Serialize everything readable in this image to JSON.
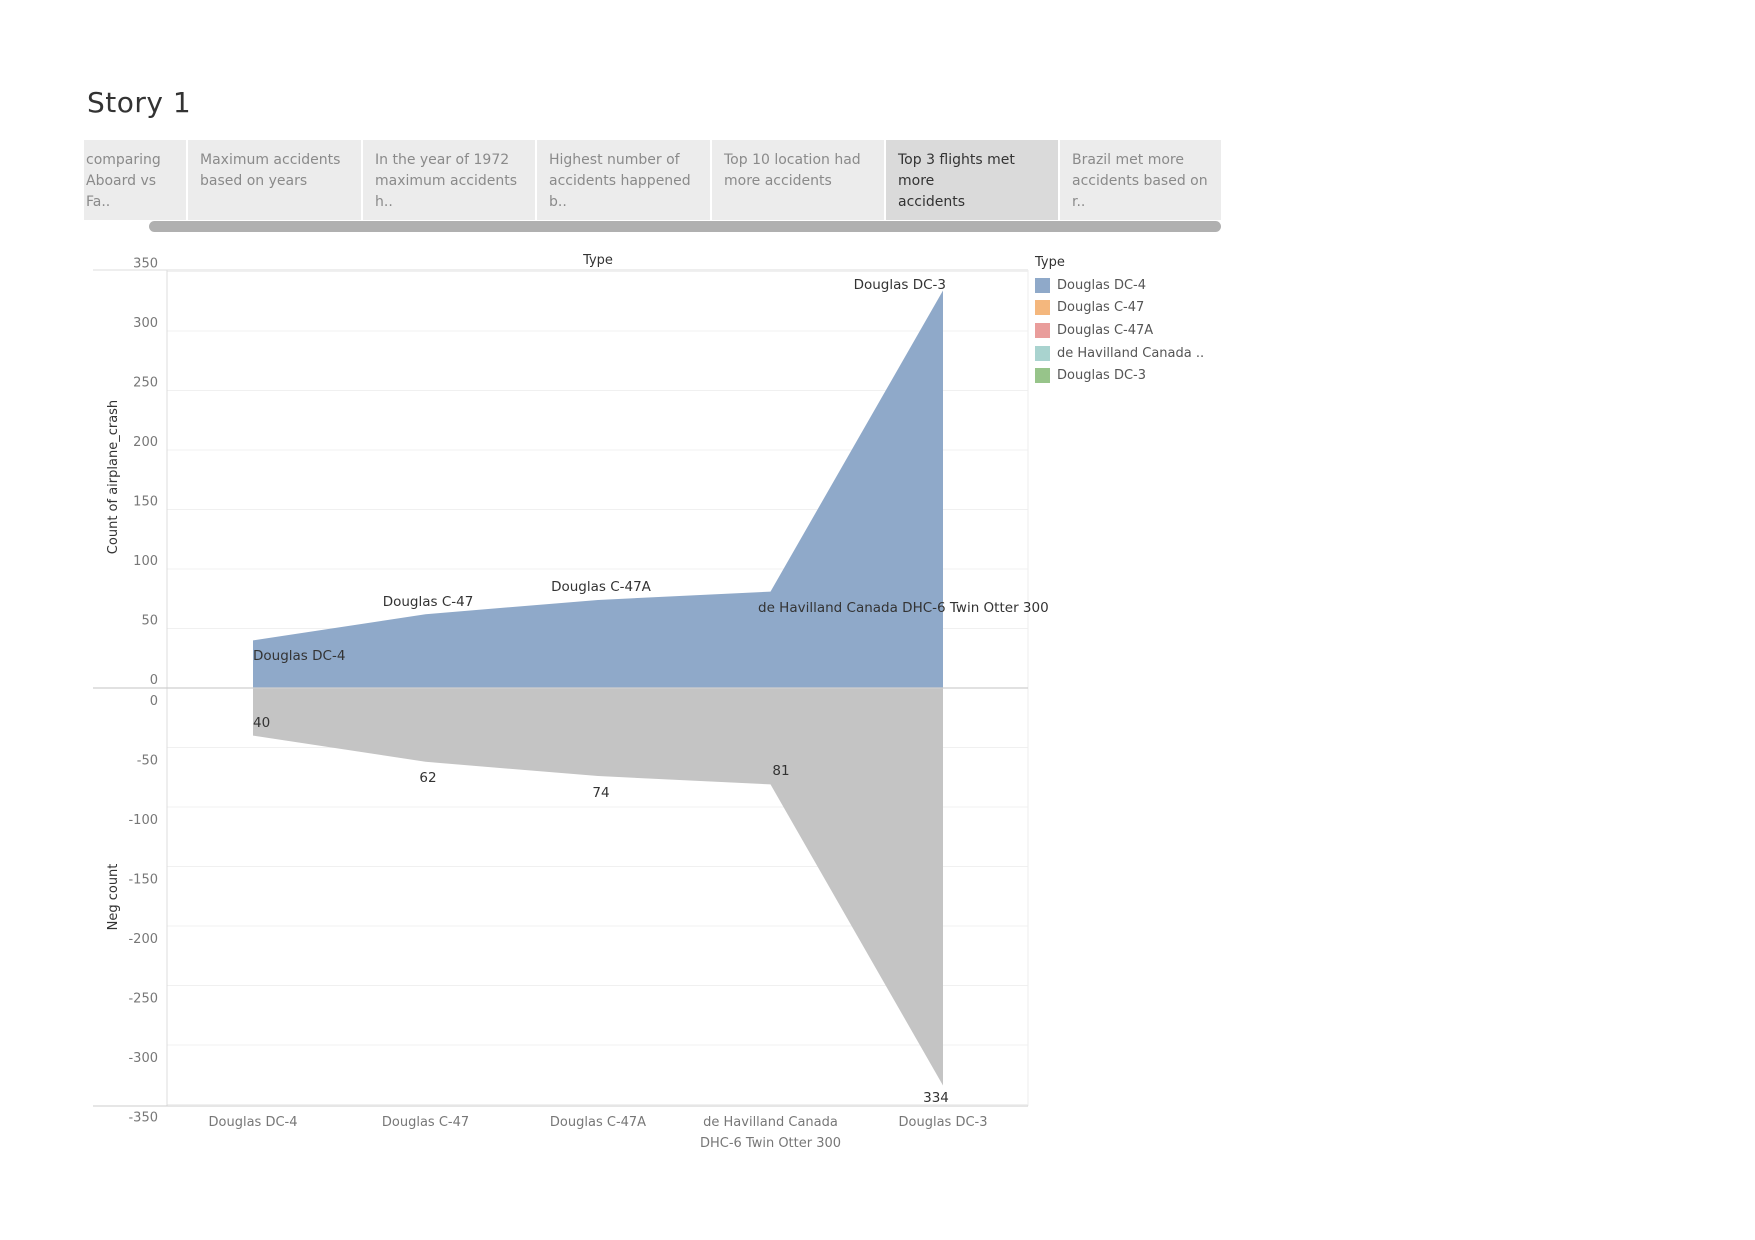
{
  "story": {
    "title": "Story 1",
    "tabs": [
      {
        "label": "comparing\nAboard vs Fa..",
        "active": false
      },
      {
        "label": "Maximum accidents\nbased on years",
        "active": false
      },
      {
        "label": "In the year of 1972\nmaximum accidents h..",
        "active": false
      },
      {
        "label": "Highest number of\naccidents happened b..",
        "active": false
      },
      {
        "label": "Top 10 location had\nmore accidents",
        "active": false
      },
      {
        "label": "Top 3 flights met more\naccidents",
        "active": true
      },
      {
        "label": "Brazil met more\naccidents based on r..",
        "active": false
      }
    ]
  },
  "legend": {
    "title": "Type",
    "items": [
      {
        "label": "Douglas DC-4",
        "color": "#8fa9c9"
      },
      {
        "label": "Douglas C-47",
        "color": "#f4b77d"
      },
      {
        "label": "Douglas C-47A",
        "color": "#e99d9b"
      },
      {
        "label": "de Havilland Canada ..",
        "color": "#a9d3cf"
      },
      {
        "label": "Douglas DC-3",
        "color": "#97c48a"
      }
    ]
  },
  "chart_data": {
    "type": "area",
    "title": "Type",
    "categories": [
      "Douglas DC-4",
      "Douglas C-47",
      "Douglas C-47A",
      "de Havilland Canada DHC-6 Twin Otter 300",
      "Douglas DC-3"
    ],
    "category_tick_labels": [
      "Douglas DC-4",
      "Douglas C-47",
      "Douglas C-47A",
      "de Havilland Canada\nDHC-6 Twin Otter 300",
      "Douglas DC-3"
    ],
    "series": [
      {
        "name": "Count of airplane_crash",
        "values": [
          40,
          62,
          74,
          81,
          334
        ],
        "color": "#8fa9c9"
      },
      {
        "name": "Neg count",
        "values": [
          -40,
          -62,
          -74,
          -81,
          -334
        ],
        "color": "#c4c4c4"
      }
    ],
    "top_panel": {
      "ylabel": "Count of airplane_crash",
      "ylim": [
        0,
        350
      ],
      "yticks": [
        0,
        50,
        100,
        150,
        200,
        250,
        300,
        350
      ],
      "mark_labels": [
        "Douglas DC-4",
        "Douglas C-47",
        "Douglas C-47A",
        "de Havilland Canada DHC-6 Twin Otter 300",
        "Douglas DC-3"
      ]
    },
    "bottom_panel": {
      "ylabel": "Neg count",
      "ylim": [
        -350,
        0
      ],
      "yticks": [
        0,
        -50,
        -100,
        -150,
        -200,
        -250,
        -300,
        -350
      ],
      "mark_labels": [
        "40",
        "62",
        "74",
        "81",
        "334"
      ]
    },
    "grid": true
  }
}
